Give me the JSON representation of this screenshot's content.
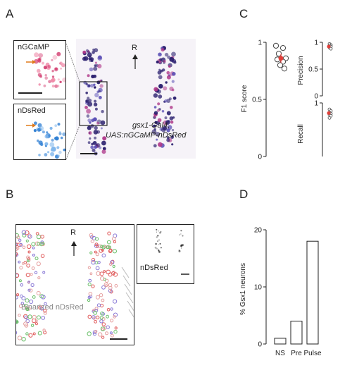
{
  "panels": {
    "a": {
      "letter": "A",
      "inset_top_label": "nGCaMP",
      "inset_bottom_label": "nDsRed",
      "orientation": "R",
      "genotype_line1": "gsx1-Gal4,",
      "genotype_line2": "UAS:nGCaMP-nDsRed"
    },
    "b": {
      "letter": "B",
      "orientation": "R",
      "main_label": "Binarized nDsRed",
      "inset_label": "nDsRed"
    },
    "c": {
      "letter": "C"
    },
    "d": {
      "letter": "D"
    }
  },
  "colors": {
    "magenta": "#d23a6e",
    "blue": "#2f7fd3",
    "dark_overlay": "#3a2a6a",
    "red_mean": "#e0403a"
  },
  "chart_data": [
    {
      "type": "scatter",
      "ylabel": "F1 score",
      "ylim": [
        0,
        1
      ],
      "yticks": [
        "0",
        "0.5",
        "1"
      ],
      "points": [
        0.97,
        0.95,
        0.9,
        0.86,
        0.85,
        0.83,
        0.8,
        0.77
      ],
      "mean": 0.86,
      "error": 0.04
    },
    {
      "type": "scatter",
      "ylabel": "Precision",
      "ylim": [
        0,
        1
      ],
      "yticks": [
        "0",
        "0.5",
        "1"
      ],
      "points": [
        0.97,
        0.95,
        0.94,
        0.92,
        0.9,
        0.88
      ],
      "mean": 0.92,
      "error": 0.02
    },
    {
      "type": "scatter",
      "ylabel": "Recall",
      "ylim": [
        0,
        1
      ],
      "yticks": [
        "0",
        "0.5",
        "1"
      ],
      "points": [
        0.88,
        0.85,
        0.82,
        0.8,
        0.78,
        0.76,
        0.72
      ],
      "mean": 0.81,
      "error": 0.03
    },
    {
      "type": "bar",
      "categories": [
        "NS",
        "Pre",
        "Pulse"
      ],
      "values": [
        1,
        4,
        18
      ],
      "ylabel": "% Gsx1 neurons",
      "ylim": [
        0,
        20
      ],
      "yticks": [
        "0",
        "10",
        "20"
      ]
    }
  ]
}
